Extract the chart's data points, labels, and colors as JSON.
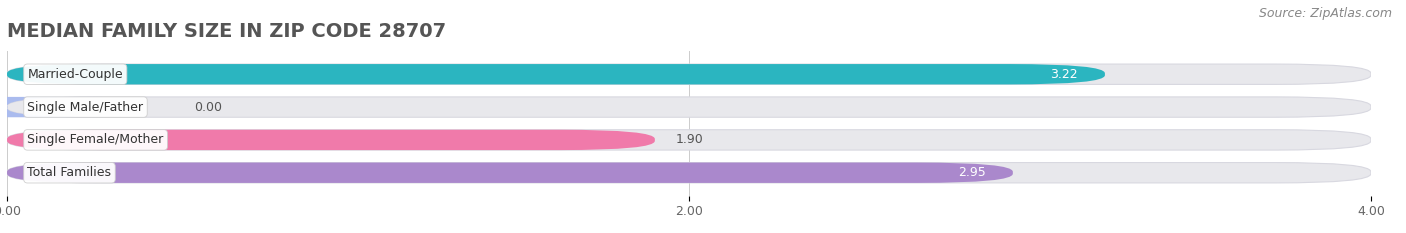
{
  "title": "MEDIAN FAMILY SIZE IN ZIP CODE 28707",
  "source": "Source: ZipAtlas.com",
  "categories": [
    "Married-Couple",
    "Single Male/Father",
    "Single Female/Mother",
    "Total Families"
  ],
  "values": [
    3.22,
    0.0,
    1.9,
    2.95
  ],
  "bar_colors": [
    "#2bb5c0",
    "#aabbee",
    "#f07aaa",
    "#aa88cc"
  ],
  "xlim": [
    0,
    4.0
  ],
  "xticks": [
    0.0,
    2.0,
    4.0
  ],
  "xtick_labels": [
    "0.00",
    "2.00",
    "4.00"
  ],
  "background_color": "#ffffff",
  "track_color": "#e8e8ec",
  "track_edge_color": "#d8d8e0",
  "title_fontsize": 14,
  "source_fontsize": 9,
  "label_fontsize": 9,
  "value_fontsize": 9,
  "bar_height": 0.62
}
